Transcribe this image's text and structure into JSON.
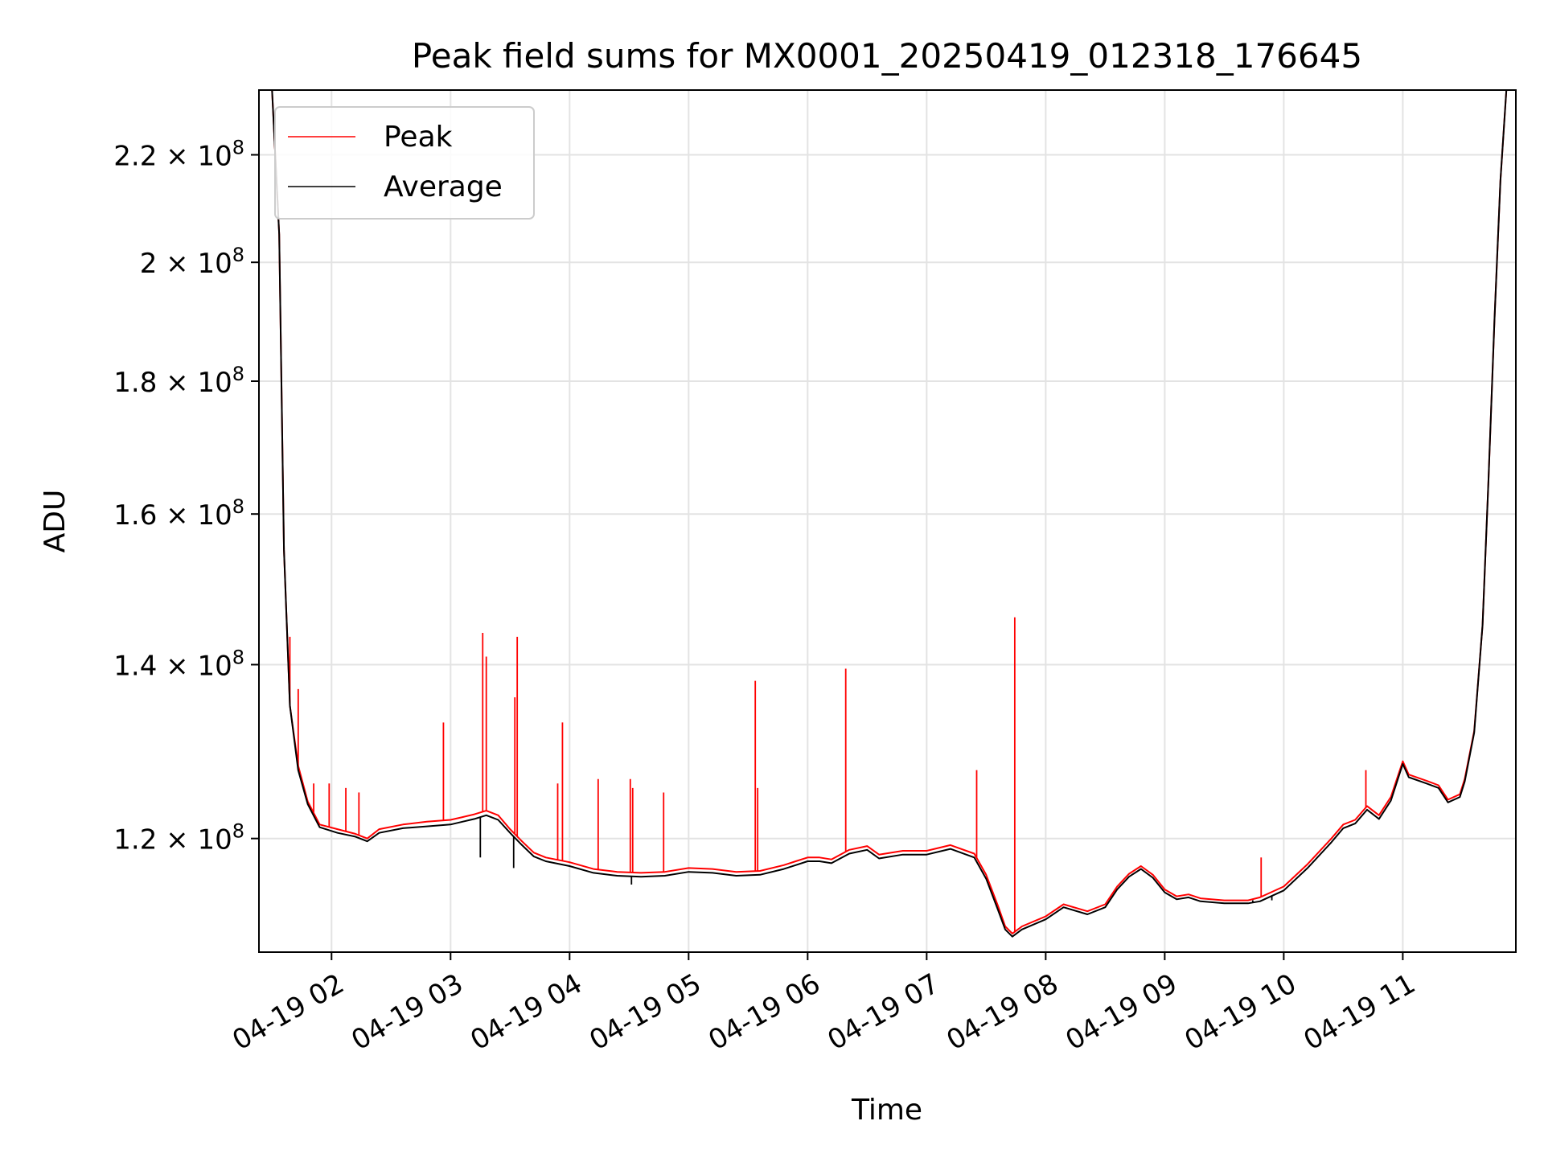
{
  "chart_data": {
    "type": "line",
    "title": "Peak field sums for MX0001_20250419_012318_176645",
    "xlabel": "Time",
    "ylabel": "ADU",
    "x_ticks": [
      "04-19 02",
      "04-19 03",
      "04-19 04",
      "04-19 05",
      "04-19 06",
      "04-19 07",
      "04-19 08",
      "04-19 09",
      "04-19 10",
      "04-19 11"
    ],
    "y_ticks": [
      {
        "value": 120000000,
        "mantissa": "1.2",
        "exponent": "8"
      },
      {
        "value": 140000000,
        "mantissa": "1.4",
        "exponent": "8"
      },
      {
        "value": 160000000,
        "mantissa": "1.6",
        "exponent": "8"
      },
      {
        "value": 180000000,
        "mantissa": "1.8",
        "exponent": "8"
      },
      {
        "value": 200000000,
        "mantissa": "2",
        "exponent": "8"
      },
      {
        "value": 220000000,
        "mantissa": "2.2",
        "exponent": "8"
      }
    ],
    "ylim": [
      108500000,
      233000000
    ],
    "xlim_hours": [
      1.39,
      11.95
    ],
    "y_scale": "log",
    "grid": true,
    "legend_position": "upper-left",
    "series": [
      {
        "name": "Peak",
        "color": "#ff0000",
        "spikes": [
          [
            1.65,
            143500000
          ],
          [
            1.72,
            137000000
          ],
          [
            1.85,
            126000000
          ],
          [
            1.98,
            126000000
          ],
          [
            2.12,
            125500000
          ],
          [
            2.23,
            125000000
          ],
          [
            2.94,
            133000000
          ],
          [
            3.27,
            144000000
          ],
          [
            3.3,
            141000000
          ],
          [
            3.54,
            136000000
          ],
          [
            3.56,
            143500000
          ],
          [
            3.9,
            126000000
          ],
          [
            3.94,
            133000000
          ],
          [
            4.24,
            126500000
          ],
          [
            4.51,
            126500000
          ],
          [
            4.53,
            125500000
          ],
          [
            4.79,
            125000000
          ],
          [
            5.56,
            138000000
          ],
          [
            5.58,
            125500000
          ],
          [
            6.32,
            139500000
          ],
          [
            7.42,
            127500000
          ],
          [
            7.74,
            146000000
          ],
          [
            9.81,
            118000000
          ],
          [
            10.69,
            127500000
          ]
        ],
        "points": [
          [
            1.39,
            233000000
          ],
          [
            1.5,
            233000000
          ],
          [
            1.56,
            205000000
          ],
          [
            1.6,
            155000000
          ],
          [
            1.65,
            135000000
          ],
          [
            1.72,
            128000000
          ],
          [
            1.8,
            124000000
          ],
          [
            1.9,
            121500000
          ],
          [
            2.05,
            121000000
          ],
          [
            2.2,
            120500000
          ],
          [
            2.3,
            120000000
          ],
          [
            2.4,
            121000000
          ],
          [
            2.6,
            121500000
          ],
          [
            2.8,
            121800000
          ],
          [
            3.0,
            122000000
          ],
          [
            3.1,
            122300000
          ],
          [
            3.2,
            122600000
          ],
          [
            3.3,
            123000000
          ],
          [
            3.4,
            122500000
          ],
          [
            3.5,
            121000000
          ],
          [
            3.6,
            119700000
          ],
          [
            3.7,
            118500000
          ],
          [
            3.8,
            118000000
          ],
          [
            4.0,
            117500000
          ],
          [
            4.2,
            116800000
          ],
          [
            4.4,
            116500000
          ],
          [
            4.6,
            116400000
          ],
          [
            4.8,
            116500000
          ],
          [
            5.0,
            116900000
          ],
          [
            5.2,
            116800000
          ],
          [
            5.4,
            116500000
          ],
          [
            5.6,
            116600000
          ],
          [
            5.8,
            117200000
          ],
          [
            5.9,
            117600000
          ],
          [
            6.0,
            118000000
          ],
          [
            6.1,
            118000000
          ],
          [
            6.2,
            117800000
          ],
          [
            6.35,
            118800000
          ],
          [
            6.5,
            119200000
          ],
          [
            6.6,
            118300000
          ],
          [
            6.8,
            118700000
          ],
          [
            7.0,
            118700000
          ],
          [
            7.2,
            119300000
          ],
          [
            7.4,
            118400000
          ],
          [
            7.5,
            116200000
          ],
          [
            7.6,
            113000000
          ],
          [
            7.66,
            111000000
          ],
          [
            7.72,
            110300000
          ],
          [
            7.8,
            111000000
          ],
          [
            8.0,
            112000000
          ],
          [
            8.15,
            113200000
          ],
          [
            8.35,
            112500000
          ],
          [
            8.5,
            113200000
          ],
          [
            8.6,
            115000000
          ],
          [
            8.7,
            116300000
          ],
          [
            8.8,
            117100000
          ],
          [
            8.9,
            116200000
          ],
          [
            9.0,
            114700000
          ],
          [
            9.1,
            114000000
          ],
          [
            9.2,
            114200000
          ],
          [
            9.3,
            113800000
          ],
          [
            9.5,
            113600000
          ],
          [
            9.7,
            113600000
          ],
          [
            9.8,
            113900000
          ],
          [
            10.0,
            115000000
          ],
          [
            10.2,
            117300000
          ],
          [
            10.4,
            120000000
          ],
          [
            10.5,
            121500000
          ],
          [
            10.6,
            122000000
          ],
          [
            10.7,
            123500000
          ],
          [
            10.8,
            122500000
          ],
          [
            10.9,
            124500000
          ],
          [
            11.0,
            128500000
          ],
          [
            11.05,
            127000000
          ],
          [
            11.2,
            126300000
          ],
          [
            11.3,
            125800000
          ],
          [
            11.38,
            124200000
          ],
          [
            11.48,
            124800000
          ],
          [
            11.52,
            126500000
          ],
          [
            11.6,
            132000000
          ],
          [
            11.67,
            145000000
          ],
          [
            11.72,
            165000000
          ],
          [
            11.77,
            190000000
          ],
          [
            11.82,
            215000000
          ],
          [
            11.87,
            233000000
          ],
          [
            11.95,
            233000000
          ]
        ]
      },
      {
        "name": "Average",
        "color": "#000000",
        "dips": [
          [
            3.25,
            118000000
          ],
          [
            3.53,
            116900000
          ],
          [
            4.52,
            115200000
          ],
          [
            9.74,
            113600000
          ],
          [
            9.9,
            113600000
          ]
        ],
        "points": [
          [
            1.39,
            233000000
          ],
          [
            1.5,
            233000000
          ],
          [
            1.56,
            205000000
          ],
          [
            1.6,
            155000000
          ],
          [
            1.65,
            135000000
          ],
          [
            1.72,
            127500000
          ],
          [
            1.8,
            123700000
          ],
          [
            1.9,
            121200000
          ],
          [
            2.05,
            120600000
          ],
          [
            2.2,
            120200000
          ],
          [
            2.3,
            119700000
          ],
          [
            2.4,
            120600000
          ],
          [
            2.6,
            121100000
          ],
          [
            2.8,
            121300000
          ],
          [
            3.0,
            121500000
          ],
          [
            3.1,
            121800000
          ],
          [
            3.2,
            122100000
          ],
          [
            3.3,
            122500000
          ],
          [
            3.4,
            122000000
          ],
          [
            3.5,
            120600000
          ],
          [
            3.6,
            119300000
          ],
          [
            3.7,
            118100000
          ],
          [
            3.8,
            117600000
          ],
          [
            4.0,
            117100000
          ],
          [
            4.2,
            116400000
          ],
          [
            4.4,
            116100000
          ],
          [
            4.6,
            116000000
          ],
          [
            4.8,
            116100000
          ],
          [
            5.0,
            116500000
          ],
          [
            5.2,
            116400000
          ],
          [
            5.4,
            116100000
          ],
          [
            5.6,
            116200000
          ],
          [
            5.8,
            116800000
          ],
          [
            5.9,
            117200000
          ],
          [
            6.0,
            117600000
          ],
          [
            6.1,
            117600000
          ],
          [
            6.2,
            117400000
          ],
          [
            6.35,
            118400000
          ],
          [
            6.5,
            118800000
          ],
          [
            6.6,
            117900000
          ],
          [
            6.8,
            118300000
          ],
          [
            7.0,
            118300000
          ],
          [
            7.2,
            118900000
          ],
          [
            7.4,
            118000000
          ],
          [
            7.5,
            115800000
          ],
          [
            7.6,
            112600000
          ],
          [
            7.66,
            110700000
          ],
          [
            7.72,
            110000000
          ],
          [
            7.8,
            110700000
          ],
          [
            8.0,
            111700000
          ],
          [
            8.15,
            112900000
          ],
          [
            8.35,
            112200000
          ],
          [
            8.5,
            112900000
          ],
          [
            8.6,
            114700000
          ],
          [
            8.7,
            116000000
          ],
          [
            8.8,
            116800000
          ],
          [
            8.9,
            115900000
          ],
          [
            9.0,
            114400000
          ],
          [
            9.1,
            113700000
          ],
          [
            9.2,
            113900000
          ],
          [
            9.3,
            113500000
          ],
          [
            9.5,
            113300000
          ],
          [
            9.7,
            113300000
          ],
          [
            9.8,
            113500000
          ],
          [
            10.0,
            114600000
          ],
          [
            10.2,
            116900000
          ],
          [
            10.4,
            119600000
          ],
          [
            10.5,
            121100000
          ],
          [
            10.6,
            121600000
          ],
          [
            10.7,
            123100000
          ],
          [
            10.8,
            122100000
          ],
          [
            10.9,
            124100000
          ],
          [
            11.0,
            128200000
          ],
          [
            11.05,
            126700000
          ],
          [
            11.2,
            126000000
          ],
          [
            11.3,
            125500000
          ],
          [
            11.38,
            123900000
          ],
          [
            11.48,
            124500000
          ],
          [
            11.52,
            126200000
          ],
          [
            11.6,
            131800000
          ],
          [
            11.67,
            145000000
          ],
          [
            11.72,
            165000000
          ],
          [
            11.77,
            190000000
          ],
          [
            11.82,
            215000000
          ],
          [
            11.87,
            233000000
          ],
          [
            11.95,
            233000000
          ]
        ]
      }
    ]
  }
}
